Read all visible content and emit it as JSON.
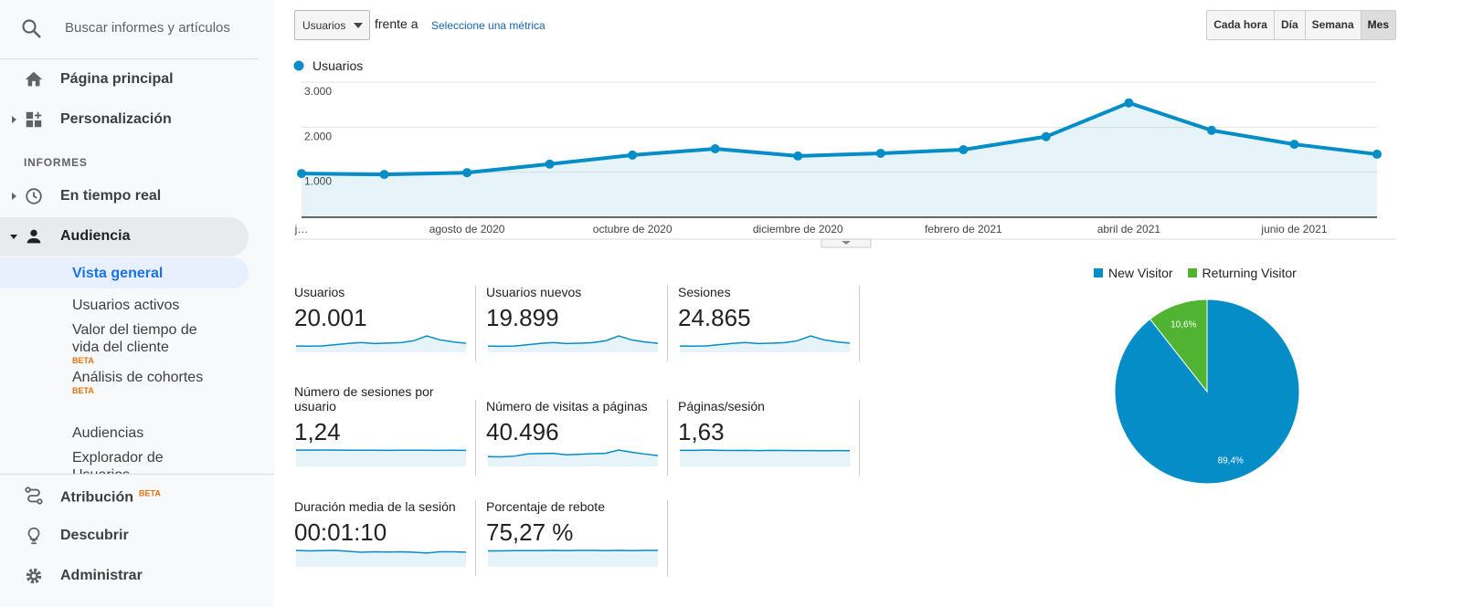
{
  "sidebar": {
    "search_placeholder": "Buscar informes y artículos",
    "items": [
      {
        "label": "Página principal"
      },
      {
        "label": "Personalización"
      }
    ],
    "section": "INFORMES",
    "reports": [
      {
        "label": "En tiempo real"
      },
      {
        "label": "Audiencia",
        "sub_items": [
          {
            "label": "Vista general"
          },
          {
            "label": "Usuarios activos"
          },
          {
            "label": "Valor del tiempo de vida del cliente",
            "badge": "BETA"
          },
          {
            "label": "Análisis de cohortes",
            "badge": "BETA"
          },
          {
            "label": "Audiencias"
          },
          {
            "label": "Explorador de Usuarios"
          }
        ]
      }
    ],
    "footer_items": [
      {
        "label": "Atribución",
        "badge": "BETA"
      },
      {
        "label": "Descubrir"
      },
      {
        "label": "Administrar"
      }
    ]
  },
  "toolbar": {
    "metric": "Usuarios",
    "versus": "frente a",
    "compare_link": "Seleccione una métrica",
    "granularity": [
      "Cada hora",
      "Día",
      "Semana",
      "Mes"
    ],
    "active_granularity": 3
  },
  "chart_data": [
    {
      "type": "line",
      "categories": [
        "j…",
        null,
        "agosto de 2020",
        null,
        "octubre de 2020",
        null,
        "diciembre de 2020",
        null,
        "febrero de 2021",
        null,
        "abril de 2021",
        null,
        "junio de 2021",
        null
      ],
      "series": [
        {
          "name": "Usuarios",
          "color": "#058dc7",
          "values": [
            970,
            950,
            990,
            1180,
            1380,
            1520,
            1360,
            1420,
            1500,
            1790,
            2540,
            1930,
            1620,
            1400
          ]
        }
      ],
      "ylim": [
        0,
        3000
      ],
      "yticks": [
        {
          "value": 1000,
          "label": "1.000"
        },
        {
          "value": 2000,
          "label": "2.000"
        },
        {
          "value": 3000,
          "label": "3.000"
        }
      ],
      "grid": true,
      "area": true
    },
    {
      "type": "pie",
      "categories": [
        "New Visitor",
        "Returning Visitor"
      ],
      "values": [
        89.4,
        10.6
      ],
      "value_labels": [
        "89,4%",
        "10,6%"
      ],
      "colors": [
        "#058dc7",
        "#50b432"
      ],
      "legend": "top"
    }
  ],
  "metrics": [
    {
      "label": "Usuarios",
      "value": "20.001",
      "trend": [
        970,
        950,
        990,
        1180,
        1380,
        1520,
        1360,
        1420,
        1500,
        1790,
        2540,
        1930,
        1620,
        1400
      ]
    },
    {
      "label": "Usuarios nuevos",
      "value": "19.899",
      "trend": [
        960,
        930,
        970,
        1160,
        1360,
        1500,
        1340,
        1400,
        1480,
        1770,
        2520,
        1900,
        1600,
        1380
      ]
    },
    {
      "label": "Sesiones",
      "value": "24.865",
      "trend": [
        1200,
        1180,
        1230,
        1460,
        1710,
        1890,
        1690,
        1760,
        1860,
        2220,
        3150,
        2400,
        2010,
        1740
      ]
    },
    {
      "label": "Número de sesiones por usuario",
      "value": "1,24",
      "trend": [
        1.25,
        1.25,
        1.26,
        1.25,
        1.24,
        1.24,
        1.24,
        1.23,
        1.24,
        1.24,
        1.24,
        1.23,
        1.24,
        1.23
      ]
    },
    {
      "label": "Número de visitas a páginas",
      "value": "40.496",
      "trend": [
        1950,
        1900,
        2020,
        2450,
        2550,
        2600,
        2300,
        2400,
        2500,
        2600,
        3250,
        2800,
        2450,
        2150
      ]
    },
    {
      "label": "Páginas/sesión",
      "value": "1,63",
      "trend": [
        1.63,
        1.62,
        1.66,
        1.63,
        1.61,
        1.62,
        1.6,
        1.62,
        1.61,
        1.6,
        1.6,
        1.59,
        1.6,
        1.59
      ]
    },
    {
      "label": "Duración media de la sesión",
      "value": "00:01:10",
      "trend": [
        74,
        72,
        73,
        74,
        70,
        66,
        68,
        67,
        68,
        66,
        62,
        68,
        68,
        66
      ]
    },
    {
      "label": "Porcentaje de rebote",
      "value": "75,27 %",
      "trend": [
        74,
        74,
        75,
        75,
        75,
        76,
        75,
        76,
        76,
        75,
        76,
        75,
        76,
        76
      ]
    }
  ]
}
